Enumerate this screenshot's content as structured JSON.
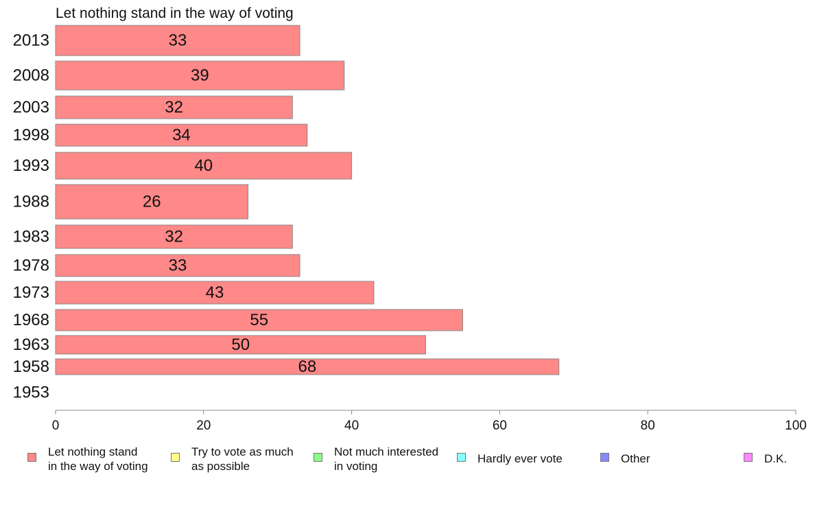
{
  "chart_data": {
    "type": "bar",
    "orientation": "horizontal",
    "title": "Let nothing stand in the way of voting",
    "categories": [
      "2013",
      "2008",
      "2003",
      "1998",
      "1993",
      "1988",
      "1983",
      "1978",
      "1973",
      "1968",
      "1963",
      "1958",
      "1953"
    ],
    "values": [
      33,
      39,
      32,
      34,
      40,
      26,
      32,
      33,
      43,
      55,
      50,
      68,
      null
    ],
    "bar_color": "#ff8888",
    "xlim": [
      0,
      100
    ],
    "xticks": [
      0,
      20,
      40,
      60,
      80,
      100
    ],
    "xlabel": "",
    "ylabel": "",
    "grid": false,
    "legend_position": "bottom",
    "legend": [
      {
        "label": "Let nothing stand\nin the way of voting",
        "color": "#ff8888"
      },
      {
        "label": "Try to vote as much\nas possible",
        "color": "#ffff88"
      },
      {
        "label": "Not much interested\nin voting",
        "color": "#88ff88"
      },
      {
        "label": "Hardly ever vote",
        "color": "#88ffff"
      },
      {
        "label": "Other",
        "color": "#8888ff"
      },
      {
        "label": "D.K.",
        "color": "#ff88ff"
      }
    ]
  }
}
